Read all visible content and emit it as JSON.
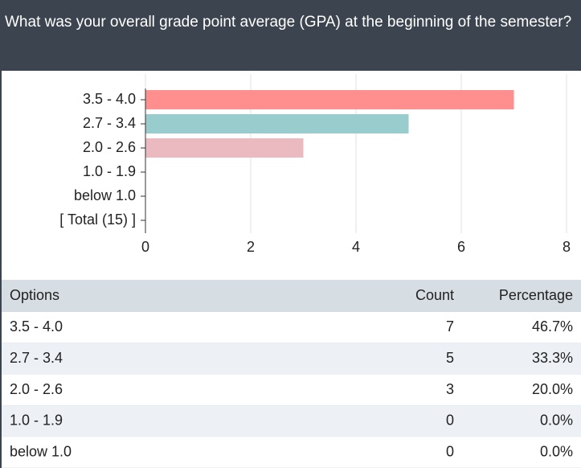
{
  "header": {
    "title": "What was your overall grade point average (GPA) at the beginning of the semester?"
  },
  "chart_data": {
    "type": "bar",
    "orientation": "horizontal",
    "categories": [
      "3.5 - 4.0",
      "2.7 - 3.4",
      "2.0 - 2.6",
      "1.0 - 1.9",
      "below 1.0",
      "[ Total (15) ]"
    ],
    "values": [
      7,
      5,
      3,
      0,
      0,
      null
    ],
    "colors": [
      "#ff8f8f",
      "#99cccc",
      "#ebb9c0",
      "#ff8f8f",
      "#99cccc",
      "#ebb9c0"
    ],
    "xlim": [
      0,
      8
    ],
    "xticks": [
      0,
      2,
      4,
      6,
      8
    ],
    "grid": true
  },
  "table": {
    "columns": [
      "Options",
      "Count",
      "Percentage"
    ],
    "rows": [
      [
        "3.5 - 4.0",
        7,
        "46.7%"
      ],
      [
        "2.7 - 3.4",
        5,
        "33.3%"
      ],
      [
        "2.0 - 2.6",
        3,
        "20.0%"
      ],
      [
        "1.0 - 1.9",
        0,
        "0.0%"
      ],
      [
        "below 1.0",
        0,
        "0.0%"
      ]
    ]
  }
}
